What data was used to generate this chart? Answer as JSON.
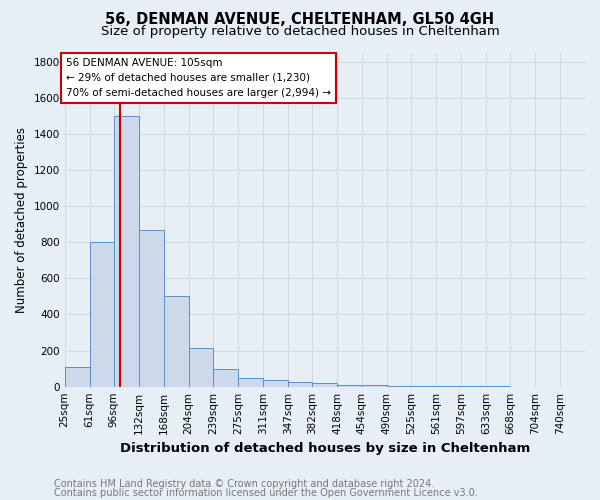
{
  "title1": "56, DENMAN AVENUE, CHELTENHAM, GL50 4GH",
  "title2": "Size of property relative to detached houses in Cheltenham",
  "xlabel": "Distribution of detached houses by size in Cheltenham",
  "ylabel": "Number of detached properties",
  "bar_edges": [
    25,
    61,
    96,
    132,
    168,
    204,
    239,
    275,
    311,
    347,
    382,
    418,
    454,
    490,
    525,
    561,
    597,
    633,
    668,
    704,
    740
  ],
  "bar_heights": [
    110,
    800,
    1500,
    870,
    500,
    215,
    100,
    50,
    35,
    25,
    20,
    12,
    8,
    5,
    3,
    2,
    1,
    1,
    0,
    0
  ],
  "bar_color": "#ccd9ea",
  "bar_edge_color": "#5b8fc9",
  "bg_color": "#e8eef5",
  "property_size": 105,
  "red_line_color": "#cc0000",
  "annotation_text": "56 DENMAN AVENUE: 105sqm\n← 29% of detached houses are smaller (1,230)\n70% of semi-detached houses are larger (2,994) →",
  "annotation_box_color": "white",
  "annotation_box_edge": "#cc0000",
  "ylim": [
    0,
    1850
  ],
  "yticks": [
    0,
    200,
    400,
    600,
    800,
    1000,
    1200,
    1400,
    1600,
    1800
  ],
  "footer1": "Contains HM Land Registry data © Crown copyright and database right 2024.",
  "footer2": "Contains public sector information licensed under the Open Government Licence v3.0.",
  "title1_fontsize": 10.5,
  "title2_fontsize": 9.5,
  "xlabel_fontsize": 9.5,
  "ylabel_fontsize": 8.5,
  "tick_fontsize": 7.5,
  "annot_fontsize": 7.5,
  "footer_fontsize": 7.0,
  "grid_color": "#d0d8e8"
}
